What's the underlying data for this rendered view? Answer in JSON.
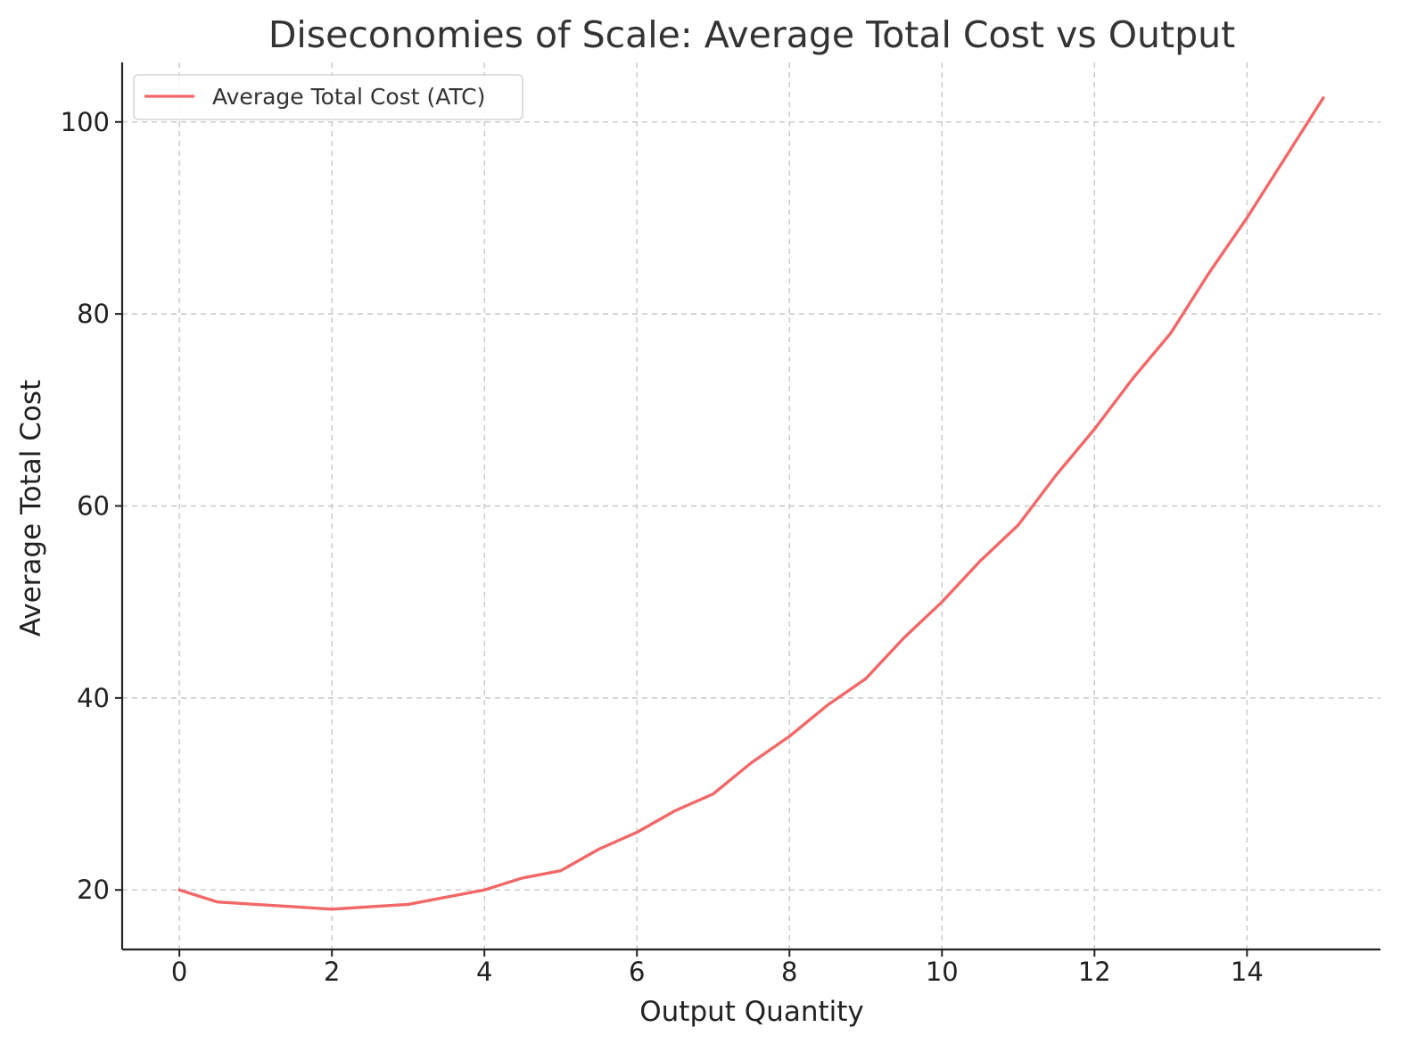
{
  "chart_data": {
    "type": "line",
    "title": "Diseconomies of Scale: Average Total Cost vs Output",
    "xlabel": "Output Quantity",
    "ylabel": "Average Total Cost",
    "xlim": [
      -0.75,
      15.75
    ],
    "ylim": [
      13.8,
      106.2
    ],
    "xticks": [
      0,
      2,
      4,
      6,
      8,
      10,
      12,
      14
    ],
    "yticks": [
      20,
      40,
      60,
      80,
      100
    ],
    "grid": true,
    "legend_position": "top-left",
    "series": [
      {
        "name": "Average Total Cost (ATC)",
        "color": "#f26868",
        "x": [
          0,
          0.5,
          1,
          1.5,
          2,
          2.5,
          3,
          3.5,
          4,
          4.5,
          5,
          5.5,
          6,
          6.5,
          7,
          7.5,
          8,
          8.5,
          9,
          9.5,
          10,
          10.5,
          11,
          11.5,
          12,
          12.5,
          13,
          13.5,
          14,
          14.5,
          15
        ],
        "y": [
          20,
          18.75,
          18.5,
          18.25,
          18,
          18.25,
          18.5,
          19.25,
          20,
          21.25,
          22,
          24.25,
          26,
          28.25,
          30,
          33.25,
          36,
          39.25,
          42,
          46.25,
          50,
          54.25,
          58,
          63.25,
          68,
          73.25,
          78,
          84.25,
          90,
          96.25,
          102.5
        ]
      }
    ]
  }
}
